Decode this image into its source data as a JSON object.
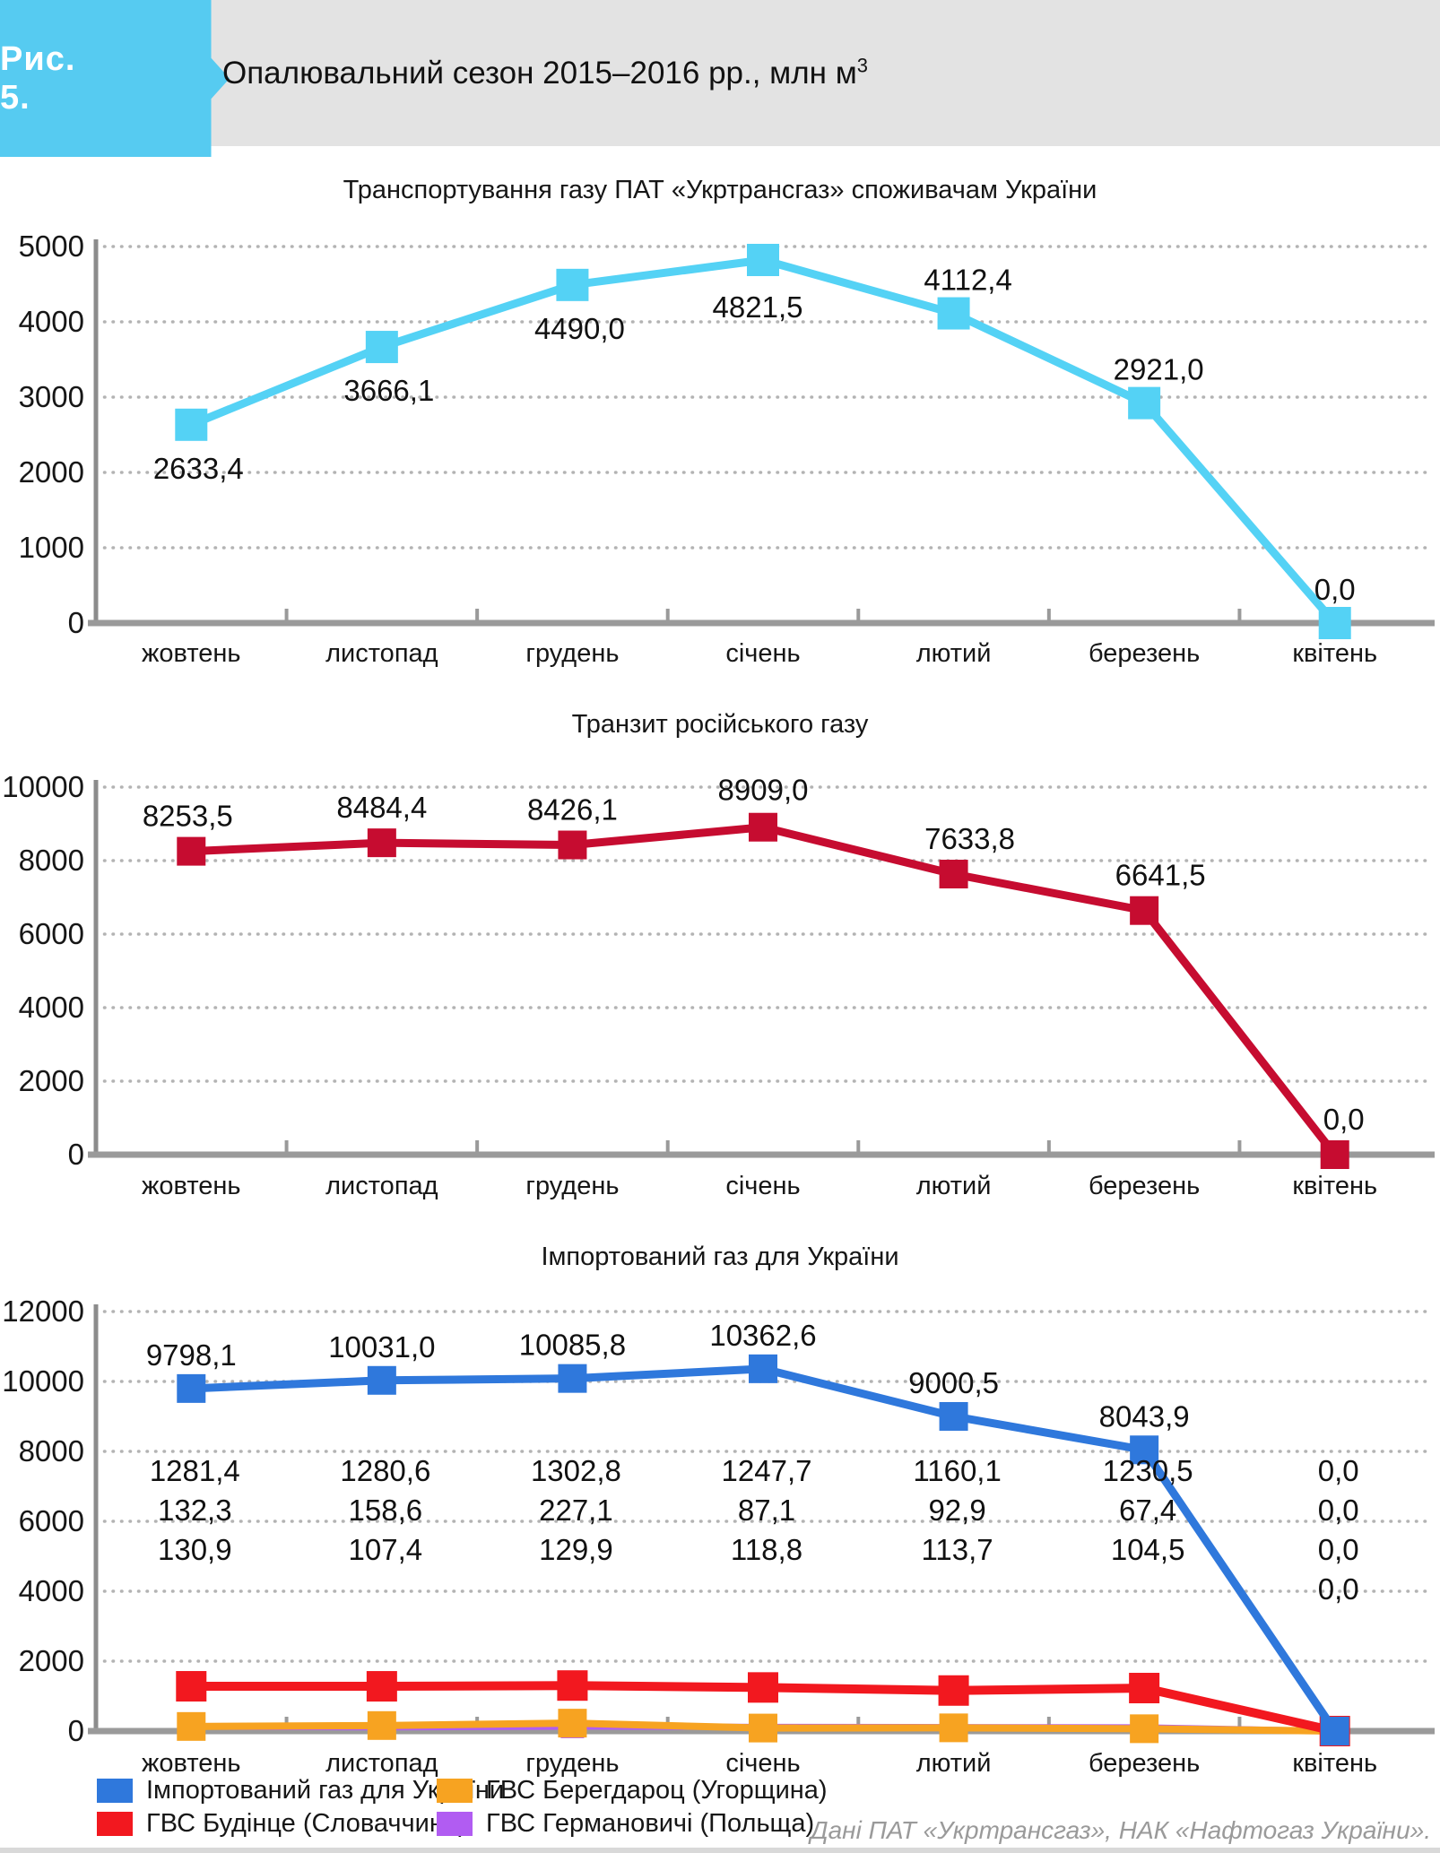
{
  "figure": {
    "badge": "Рис. 5.",
    "title": "Опалювальний сезон 2015–2016  рр., млн м",
    "title_sup": "3"
  },
  "months": [
    "жовтень",
    "листопад",
    "грудень",
    "січень",
    "лютий",
    "березень",
    "квітень"
  ],
  "chart_data": [
    {
      "type": "line",
      "title": "Транспортування газу ПАТ «Укртрансгаз» споживачам України",
      "categories": [
        "жовтень",
        "листопад",
        "грудень",
        "січень",
        "лютий",
        "березень",
        "квітень"
      ],
      "ylim": [
        0,
        5000
      ],
      "yticks": [
        "0",
        "1000",
        "2000",
        "3000",
        "4000",
        "5000"
      ],
      "ytick_values": [
        0,
        1000,
        2000,
        3000,
        4000,
        5000
      ],
      "grid": true,
      "series": [
        {
          "name": "Транспортування газу ПАТ «Укртрансгаз» споживачам України",
          "color": "#54d2f5",
          "values": [
            2633.4,
            3666.1,
            4490.0,
            4821.5,
            4112.4,
            2921.0,
            0.0
          ],
          "labels": [
            "2633,4",
            "3666,1",
            "4490,0",
            "4821,5",
            "4112,4",
            "2921,0",
            "0,0"
          ]
        }
      ]
    },
    {
      "type": "line",
      "title": "Транзит російського газу",
      "categories": [
        "жовтень",
        "листопад",
        "грудень",
        "січень",
        "лютий",
        "березень",
        "квітень"
      ],
      "ylim": [
        0,
        10000
      ],
      "yticks": [
        "0",
        "2000",
        "4000",
        "6000",
        "8000",
        "10000"
      ],
      "ytick_values": [
        0,
        2000,
        4000,
        6000,
        8000,
        10000
      ],
      "grid": true,
      "series": [
        {
          "name": "Транзит російського газу",
          "color": "#c60c30",
          "values": [
            8253.5,
            8484.4,
            8426.1,
            8909.0,
            7633.8,
            6641.5,
            0.0
          ],
          "labels": [
            "8253,5",
            "8484,4",
            "8426,1",
            "8909,0",
            "7633,8",
            "6641,5",
            "0,0"
          ]
        }
      ]
    },
    {
      "type": "line",
      "title": "Імпортований газ для України",
      "categories": [
        "жовтень",
        "листопад",
        "грудень",
        "січень",
        "лютий",
        "березень",
        "квітень"
      ],
      "ylim": [
        0,
        12000
      ],
      "yticks": [
        "0",
        "2000",
        "4000",
        "6000",
        "8000",
        "10000",
        "12000"
      ],
      "ytick_values": [
        0,
        2000,
        4000,
        6000,
        8000,
        10000,
        12000
      ],
      "grid": true,
      "legend_position": "bottom",
      "series": [
        {
          "name": "Імпортований газ для України",
          "color": "#2f78dc",
          "values": [
            9798.1,
            10031.0,
            10085.8,
            10362.6,
            9000.5,
            8043.9,
            0.0
          ],
          "labels": [
            "9798,1",
            "10031,0",
            "10085,8",
            "10362,6",
            "9000,5",
            "8043,9",
            "0,0"
          ]
        },
        {
          "name": "ГВС Будінце (Словаччина)",
          "color": "#f2181f",
          "values": [
            1281.4,
            1280.6,
            1302.8,
            1247.7,
            1160.1,
            1230.5,
            0.0
          ],
          "labels": [
            "1281,4",
            "1280,6",
            "1302,8",
            "1247,7",
            "1160,1",
            "1230,5",
            "0,0"
          ]
        },
        {
          "name": "ГВС Берегдароц (Угорщина)",
          "color": "#f7a321",
          "values": [
            132.3,
            158.6,
            227.1,
            87.1,
            92.9,
            67.4,
            0.0
          ],
          "labels": [
            "132,3",
            "158,6",
            "227,1",
            "87,1",
            "92,9",
            "67,4",
            "0,0"
          ]
        },
        {
          "name": "ГВС Германовичі (Польща)",
          "color": "#b15cf2",
          "values": [
            130.9,
            107.4,
            129.9,
            118.8,
            113.7,
            104.5,
            0.0
          ],
          "labels": [
            "130,9",
            "107,4",
            "129,9",
            "118,8",
            "113,7",
            "104,5",
            "0,0"
          ]
        }
      ]
    }
  ],
  "legend": [
    {
      "label": "Імпортований газ для України",
      "color": "#2f78dc"
    },
    {
      "label": "ГВС Будінце (Словаччина)",
      "color": "#f2181f"
    },
    {
      "label": "ГВС Берегдароц (Угорщина)",
      "color": "#f7a321"
    },
    {
      "label": "ГВС Германовичі (Польща)",
      "color": "#b15cf2"
    }
  ],
  "source": "Дані ПАТ «Укртрансгаз», НАК «Нафтогаз України»."
}
